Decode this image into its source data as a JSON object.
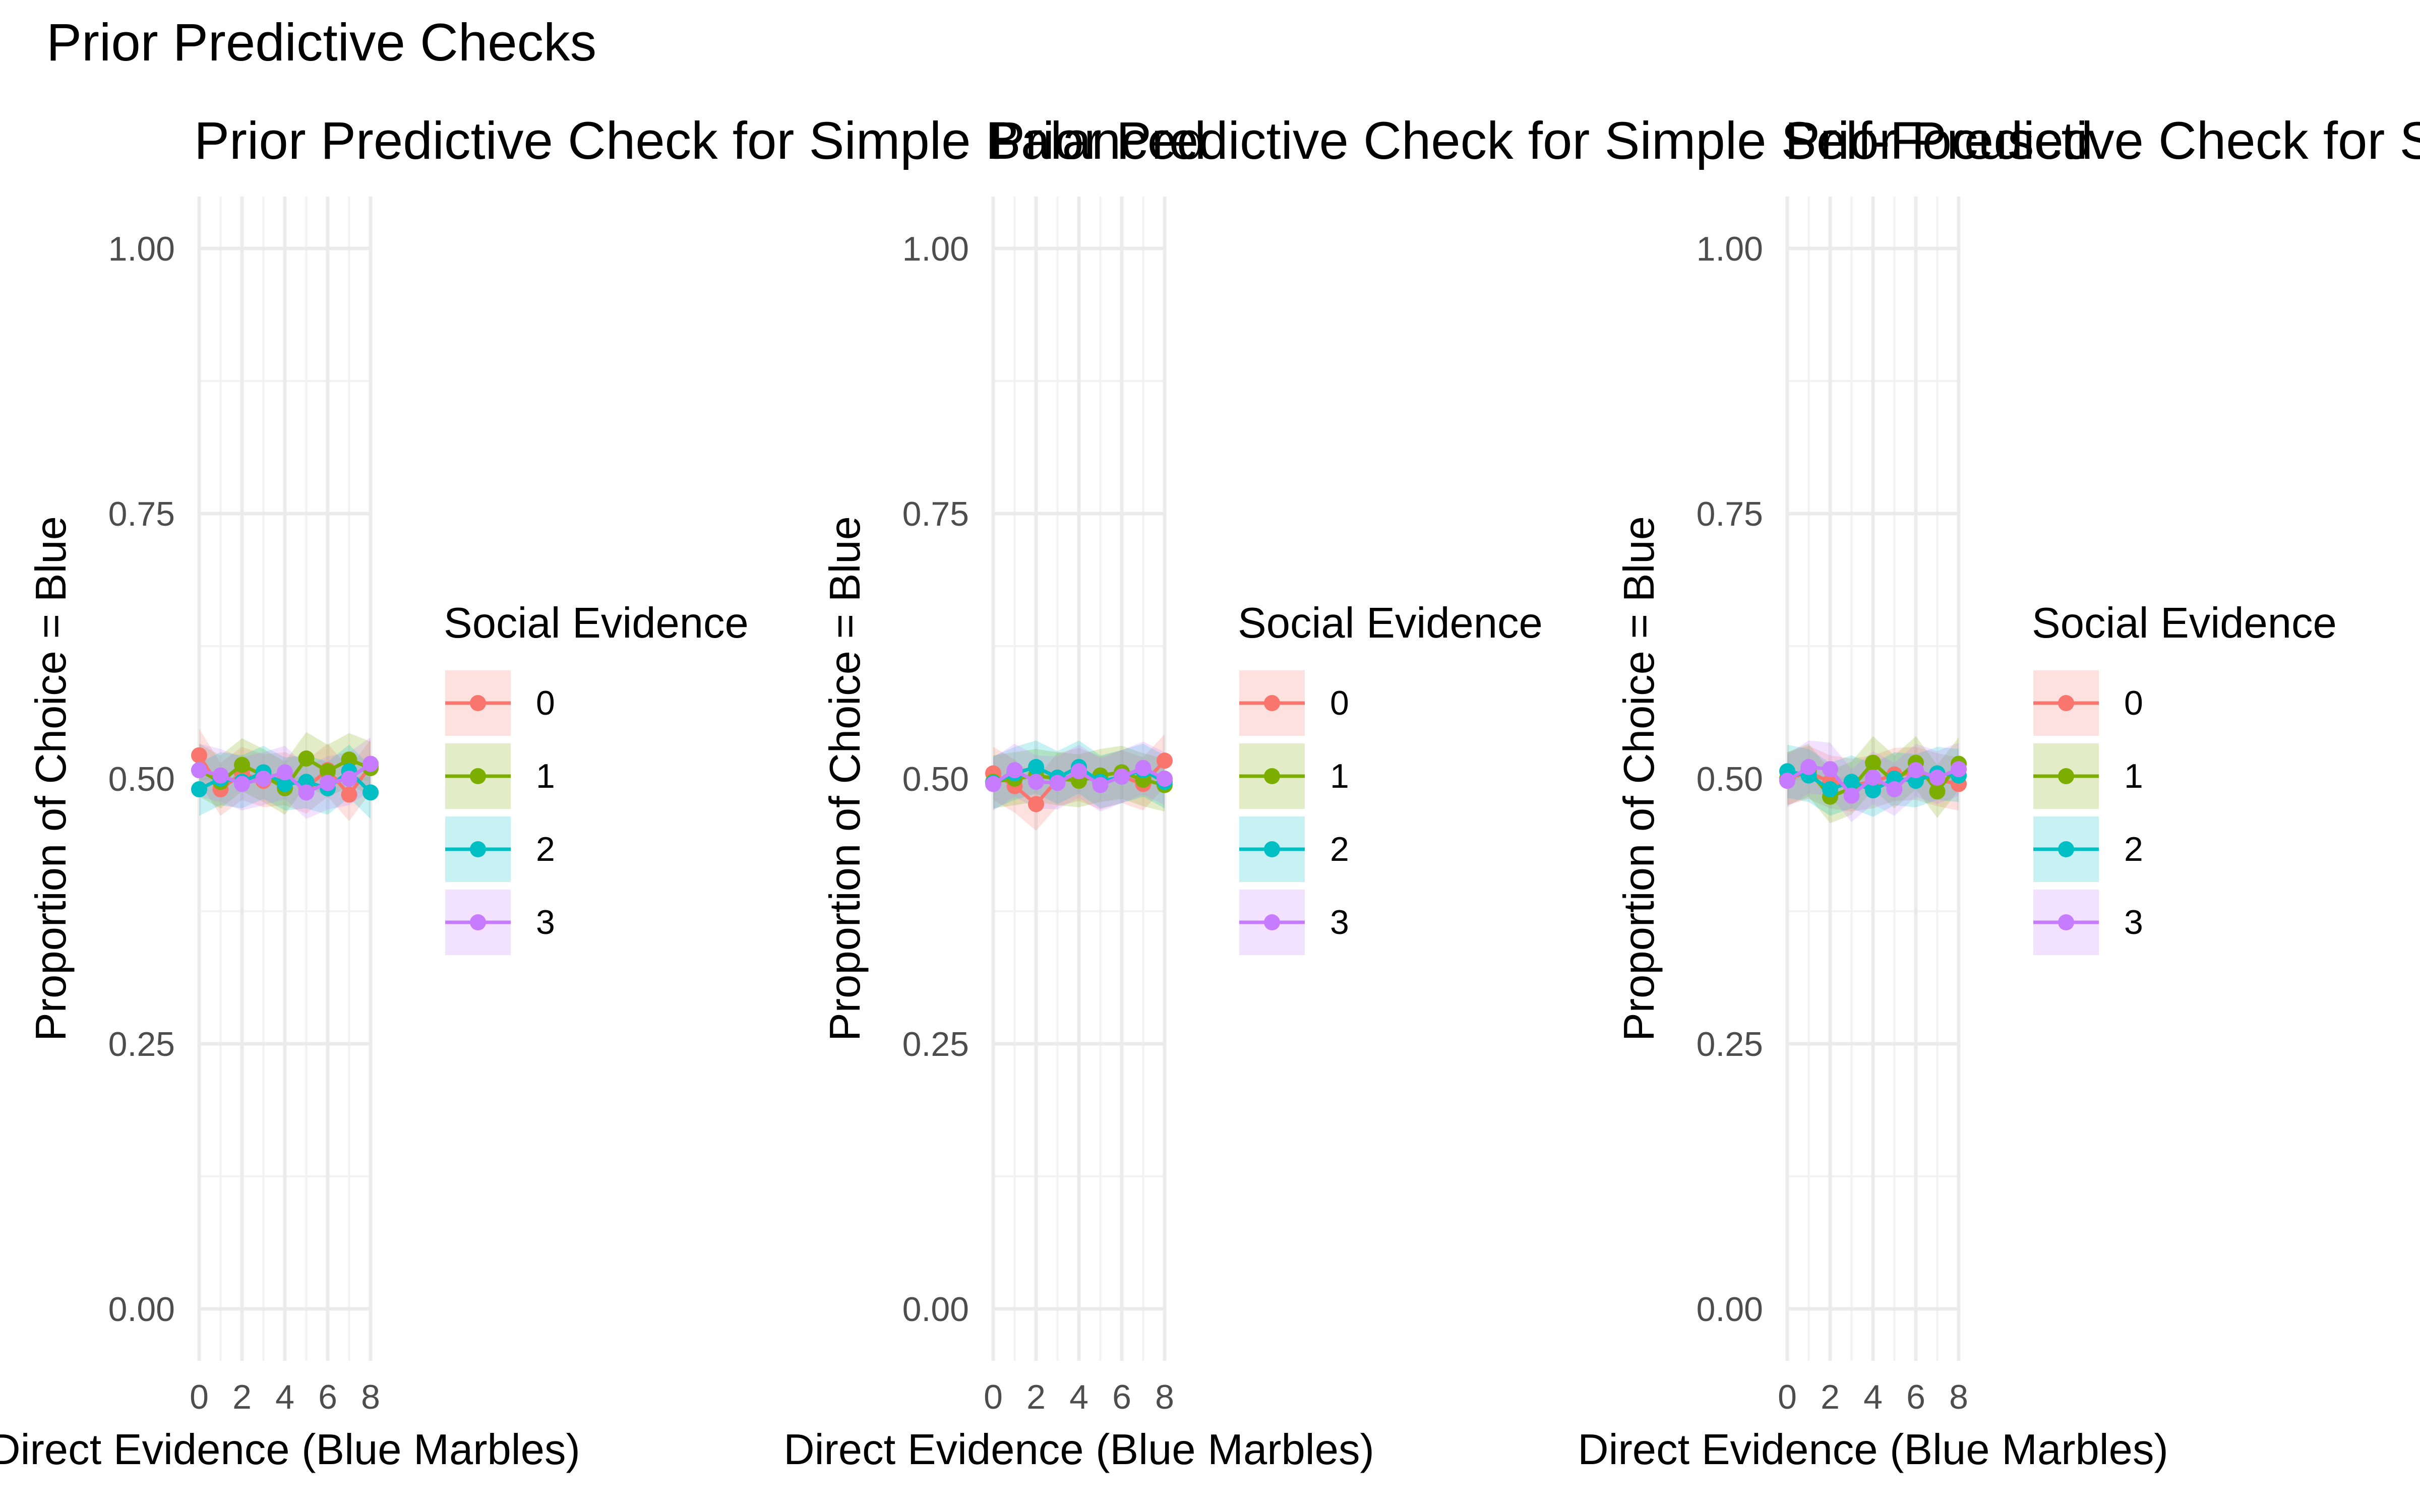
{
  "figure_title": "Prior Predictive Checks",
  "chart_data": [
    {
      "type": "line",
      "title": "Prior Predictive Check for Simple Balanced",
      "xlabel": "Direct Evidence (Blue Marbles)",
      "ylabel": "Proportion of Choice = Blue",
      "xlim": [
        0,
        8
      ],
      "ylim": [
        0,
        1
      ],
      "x_ticks": [
        "0",
        "2",
        "4",
        "6",
        "8"
      ],
      "y_ticks": [
        "0.00",
        "0.25",
        "0.50",
        "0.75",
        "1.00"
      ],
      "grid": true,
      "legend_title": "Social Evidence",
      "legend_position": "right",
      "x": [
        0,
        1,
        2,
        3,
        4,
        5,
        6,
        7,
        8
      ],
      "series": [
        {
          "name": "0",
          "color": "#F8766D",
          "values": [
            0.522,
            0.49,
            0.505,
            0.498,
            0.5,
            0.492,
            0.508,
            0.485,
            0.512
          ]
        },
        {
          "name": "1",
          "color": "#7CAE00",
          "values": [
            0.508,
            0.497,
            0.513,
            0.503,
            0.491,
            0.519,
            0.507,
            0.518,
            0.51
          ]
        },
        {
          "name": "2",
          "color": "#00BFC4",
          "values": [
            0.49,
            0.5,
            0.497,
            0.506,
            0.495,
            0.497,
            0.491,
            0.507,
            0.487
          ]
        },
        {
          "name": "3",
          "color": "#C77CFF",
          "values": [
            0.508,
            0.503,
            0.495,
            0.5,
            0.506,
            0.487,
            0.496,
            0.5,
            0.514
          ]
        }
      ],
      "band_halfwidth": 0.025
    },
    {
      "type": "line",
      "title": "Prior Predictive Check for Simple Self-Focused",
      "xlabel": "Direct Evidence (Blue Marbles)",
      "ylabel": "Proportion of Choice = Blue",
      "xlim": [
        0,
        8
      ],
      "ylim": [
        0,
        1
      ],
      "x_ticks": [
        "0",
        "2",
        "4",
        "6",
        "8"
      ],
      "y_ticks": [
        "0.00",
        "0.25",
        "0.50",
        "0.75",
        "1.00"
      ],
      "grid": true,
      "legend_title": "Social Evidence",
      "legend_position": "right",
      "x": [
        0,
        1,
        2,
        3,
        4,
        5,
        6,
        7,
        8
      ],
      "series": [
        {
          "name": "0",
          "color": "#F8766D",
          "values": [
            0.505,
            0.493,
            0.476,
            0.499,
            0.504,
            0.496,
            0.502,
            0.495,
            0.517
          ]
        },
        {
          "name": "1",
          "color": "#7CAE00",
          "values": [
            0.497,
            0.5,
            0.503,
            0.5,
            0.498,
            0.503,
            0.506,
            0.499,
            0.494
          ]
        },
        {
          "name": "2",
          "color": "#00BFC4",
          "values": [
            0.496,
            0.505,
            0.511,
            0.501,
            0.511,
            0.497,
            0.502,
            0.508,
            0.497
          ]
        },
        {
          "name": "3",
          "color": "#C77CFF",
          "values": [
            0.495,
            0.508,
            0.497,
            0.496,
            0.507,
            0.494,
            0.502,
            0.51,
            0.5
          ]
        }
      ],
      "band_halfwidth": 0.025
    },
    {
      "type": "line",
      "title": "Prior Predictive Check for Simple Other-Focused",
      "xlabel": "Direct Evidence (Blue Marbles)",
      "ylabel": "Proportion of Choice = Blue",
      "xlim": [
        0,
        8
      ],
      "ylim": [
        0,
        1
      ],
      "x_ticks": [
        "0",
        "2",
        "4",
        "6",
        "8"
      ],
      "y_ticks": [
        "0.00",
        "0.25",
        "0.50",
        "0.75",
        "1.00"
      ],
      "grid": true,
      "legend_title": "Social Evidence",
      "legend_position": "right",
      "x": [
        0,
        1,
        2,
        3,
        4,
        5,
        6,
        7,
        8
      ],
      "series": [
        {
          "name": "0",
          "color": "#F8766D",
          "values": [
            0.5,
            0.506,
            0.497,
            0.494,
            0.497,
            0.504,
            0.505,
            0.499,
            0.495
          ]
        },
        {
          "name": "1",
          "color": "#7CAE00",
          "values": [
            0.5,
            0.508,
            0.483,
            0.491,
            0.515,
            0.497,
            0.515,
            0.488,
            0.514
          ]
        },
        {
          "name": "2",
          "color": "#00BFC4",
          "values": [
            0.507,
            0.503,
            0.49,
            0.497,
            0.489,
            0.5,
            0.498,
            0.505,
            0.503
          ]
        },
        {
          "name": "3",
          "color": "#C77CFF",
          "values": [
            0.498,
            0.511,
            0.509,
            0.484,
            0.501,
            0.49,
            0.508,
            0.501,
            0.509
          ]
        }
      ],
      "band_halfwidth": 0.025
    }
  ]
}
